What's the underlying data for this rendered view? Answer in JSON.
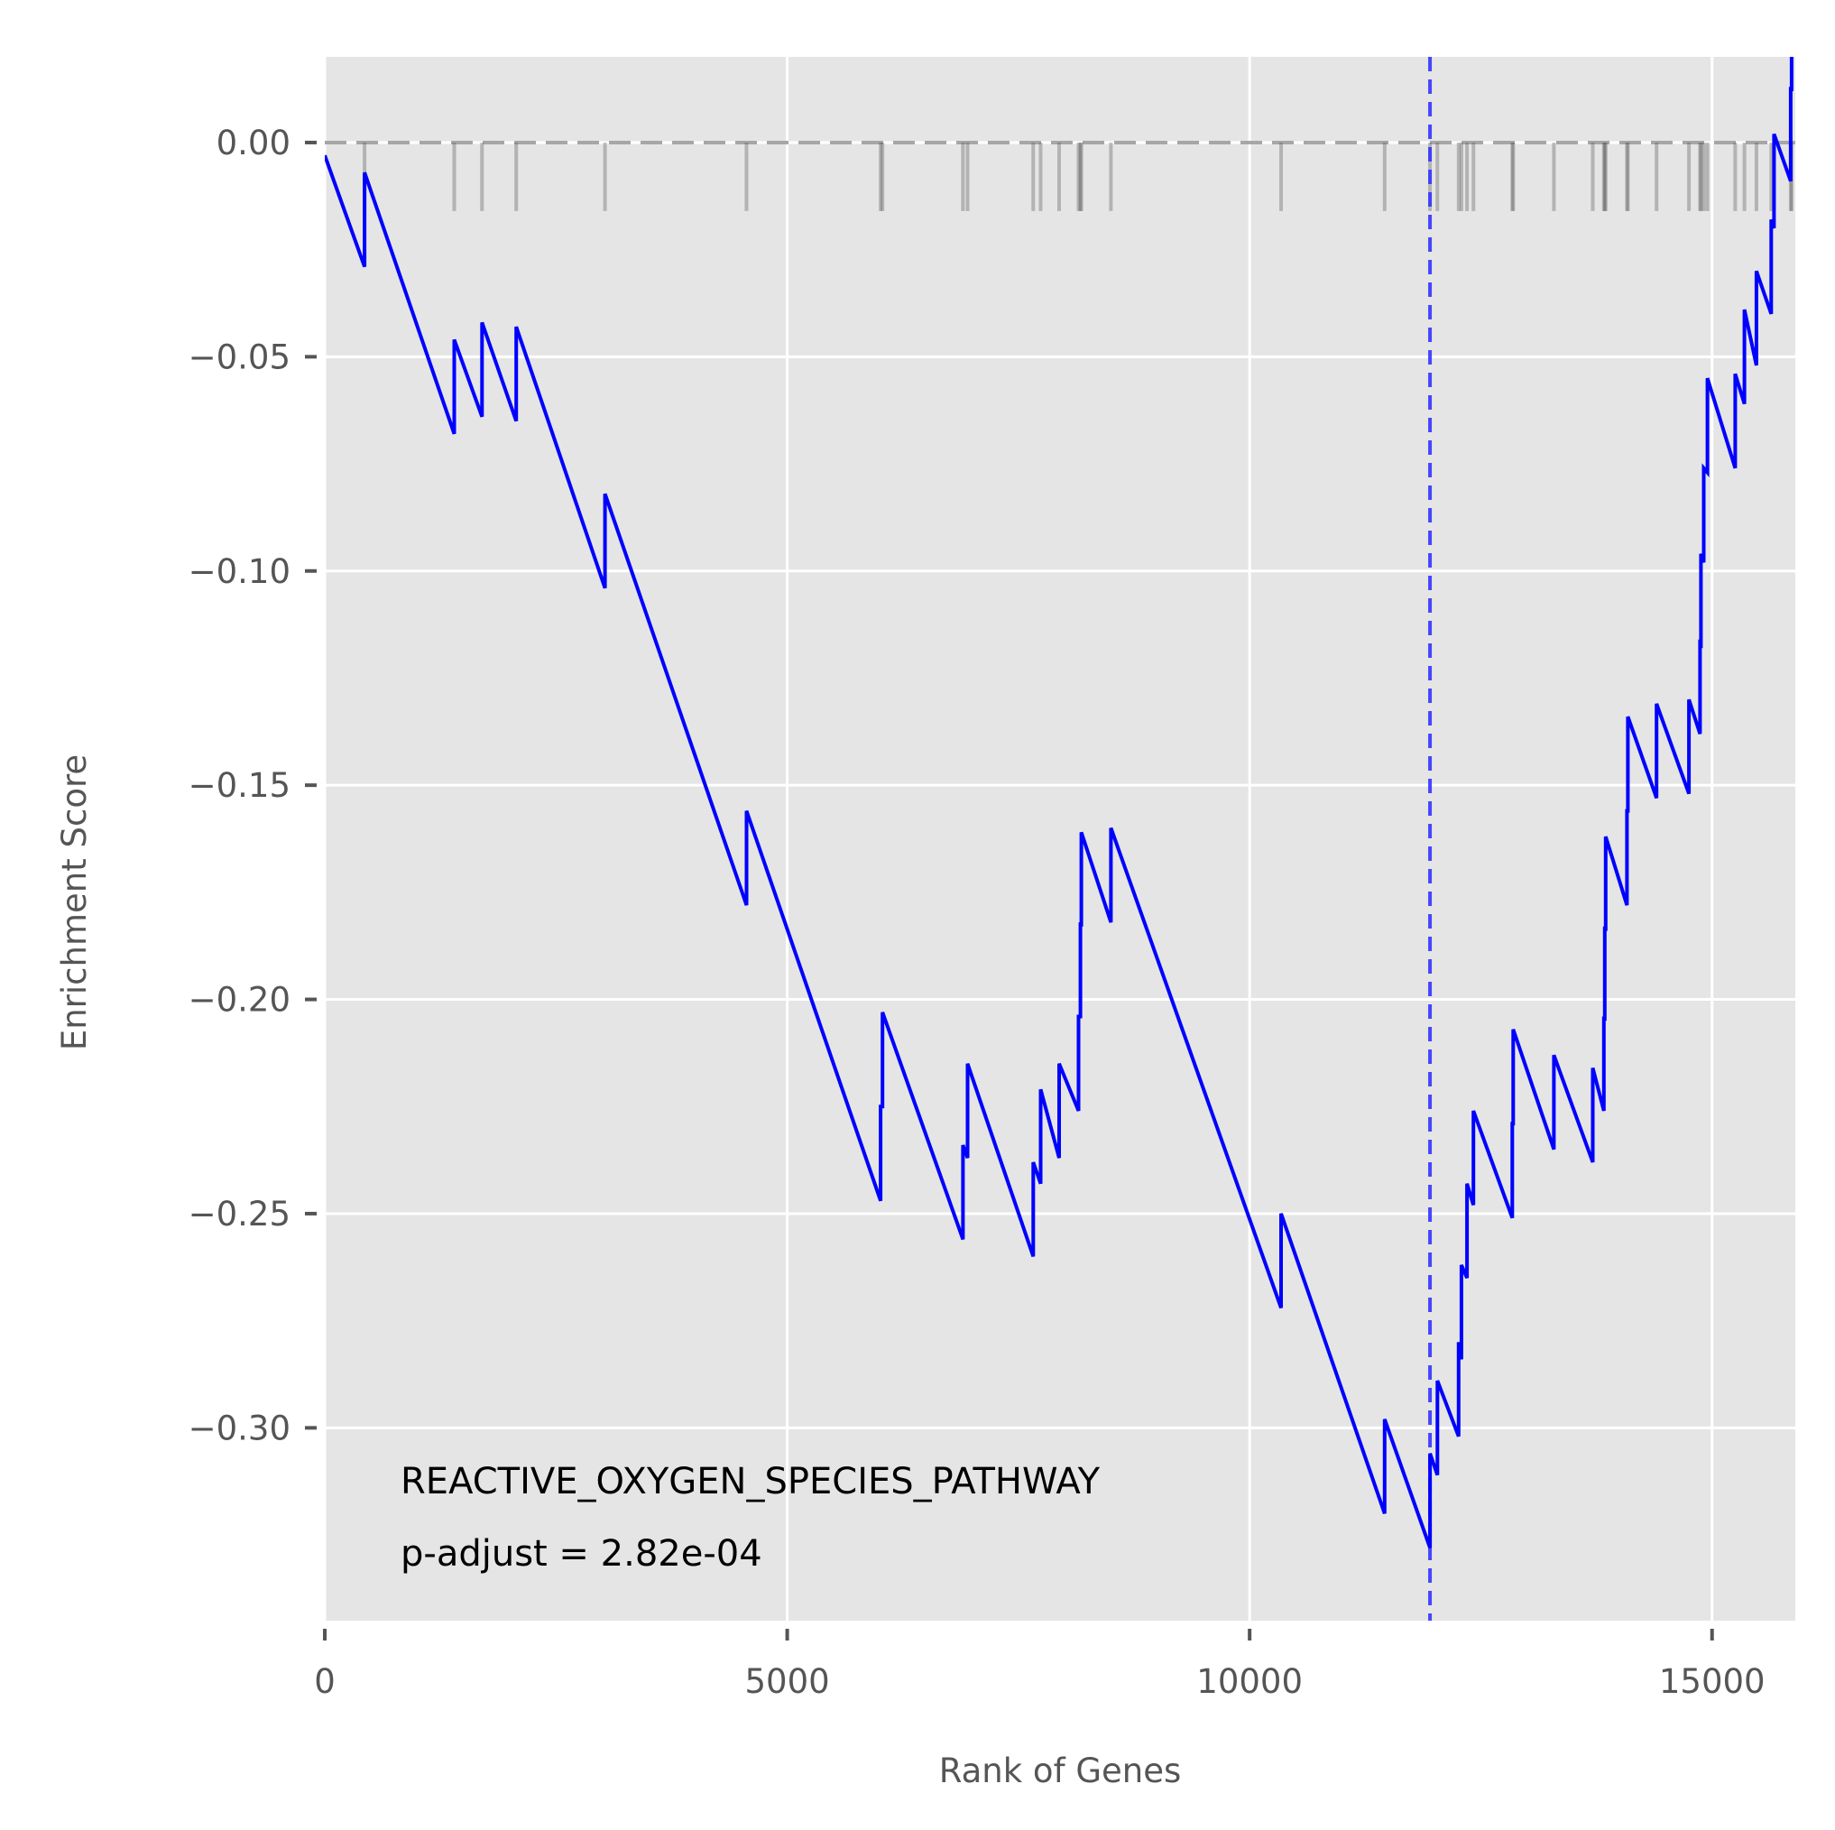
{
  "chart_data": {
    "type": "line",
    "xlabel": "Rank of Genes",
    "ylabel": "Enrichment Score",
    "xlim": [
      0,
      15900
    ],
    "ylim": [
      -0.345,
      0.02
    ],
    "xticks": [
      0,
      5000,
      10000,
      15000
    ],
    "xtick_labels": [
      "0",
      "5000",
      "10000",
      "15000"
    ],
    "yticks": [
      0.0,
      -0.05,
      -0.1,
      -0.15,
      -0.2,
      -0.25,
      -0.3
    ],
    "ytick_labels": [
      "0.00",
      "−0.05",
      "−0.10",
      "−0.15",
      "−0.20",
      "−0.25",
      "−0.30"
    ],
    "grid": true,
    "annotations": {
      "pathway": "REACTIVE_OXYGEN_SPECIES_PATHWAY",
      "padjust": "p-adjust = 2.82e-04"
    },
    "reference_lines": {
      "zero_y": 0.0,
      "max_deviation_x": 11950
    },
    "hit_ranks": [
      430,
      1400,
      1700,
      2070,
      3030,
      4560,
      6010,
      6030,
      6900,
      6950,
      7660,
      7740,
      7940,
      8150,
      8170,
      8180,
      8500,
      10340,
      11460,
      11950,
      12030,
      12260,
      12290,
      12350,
      12420,
      12840,
      12850,
      13290,
      13710,
      13830,
      13840,
      13850,
      14080,
      14090,
      14400,
      14750,
      14870,
      14880,
      14910,
      14950,
      15250,
      15350,
      15480,
      15640,
      15670,
      15850,
      15860
    ],
    "series": [
      {
        "color": "#0000ff",
        "x": [
          0,
          430,
          430,
          1400,
          1400,
          1700,
          1700,
          2070,
          2070,
          3030,
          3030,
          4560,
          4560,
          6010,
          6010,
          6030,
          6030,
          6900,
          6900,
          6950,
          6950,
          7660,
          7660,
          7740,
          7740,
          7940,
          7940,
          8150,
          8150,
          8170,
          8170,
          8180,
          8180,
          8500,
          8500,
          10340,
          10340,
          11460,
          11460,
          11950,
          11950,
          12030,
          12030,
          12260,
          12260,
          12290,
          12290,
          12350,
          12350,
          12420,
          12420,
          12840,
          12840,
          12850,
          12850,
          13290,
          13290,
          13710,
          13710,
          13830,
          13830,
          13840,
          13840,
          13850,
          13850,
          14080,
          14080,
          14090,
          14090,
          14400,
          14400,
          14750,
          14750,
          14870,
          14870,
          14880,
          14880,
          14910,
          14910,
          14950,
          14950,
          15250,
          15250,
          15350,
          15350,
          15480,
          15480,
          15640,
          15640,
          15670,
          15670,
          15850,
          15850,
          15860,
          15860
        ],
        "y": [
          -0.003,
          -0.029,
          -0.007,
          -0.068,
          -0.046,
          -0.064,
          -0.042,
          -0.065,
          -0.043,
          -0.104,
          -0.082,
          -0.178,
          -0.156,
          -0.247,
          -0.225,
          -0.225,
          -0.203,
          -0.256,
          -0.234,
          -0.237,
          -0.215,
          -0.26,
          -0.238,
          -0.243,
          -0.221,
          -0.237,
          -0.215,
          -0.226,
          -0.204,
          -0.204,
          -0.182,
          -0.183,
          -0.161,
          -0.182,
          -0.16,
          -0.272,
          -0.25,
          -0.32,
          -0.298,
          -0.328,
          -0.306,
          -0.311,
          -0.289,
          -0.302,
          -0.28,
          -0.284,
          -0.262,
          -0.265,
          -0.243,
          -0.248,
          -0.226,
          -0.251,
          -0.229,
          -0.229,
          -0.207,
          -0.235,
          -0.213,
          -0.238,
          -0.216,
          -0.226,
          -0.204,
          -0.205,
          -0.183,
          -0.184,
          -0.162,
          -0.178,
          -0.156,
          -0.156,
          -0.134,
          -0.153,
          -0.131,
          -0.152,
          -0.13,
          -0.138,
          -0.116,
          -0.118,
          -0.096,
          -0.098,
          -0.076,
          -0.077,
          -0.055,
          -0.076,
          -0.054,
          -0.061,
          -0.039,
          -0.052,
          -0.03,
          -0.04,
          -0.018,
          -0.02,
          0.002,
          -0.009,
          0.013,
          0.012,
          0.034
        ]
      }
    ]
  }
}
